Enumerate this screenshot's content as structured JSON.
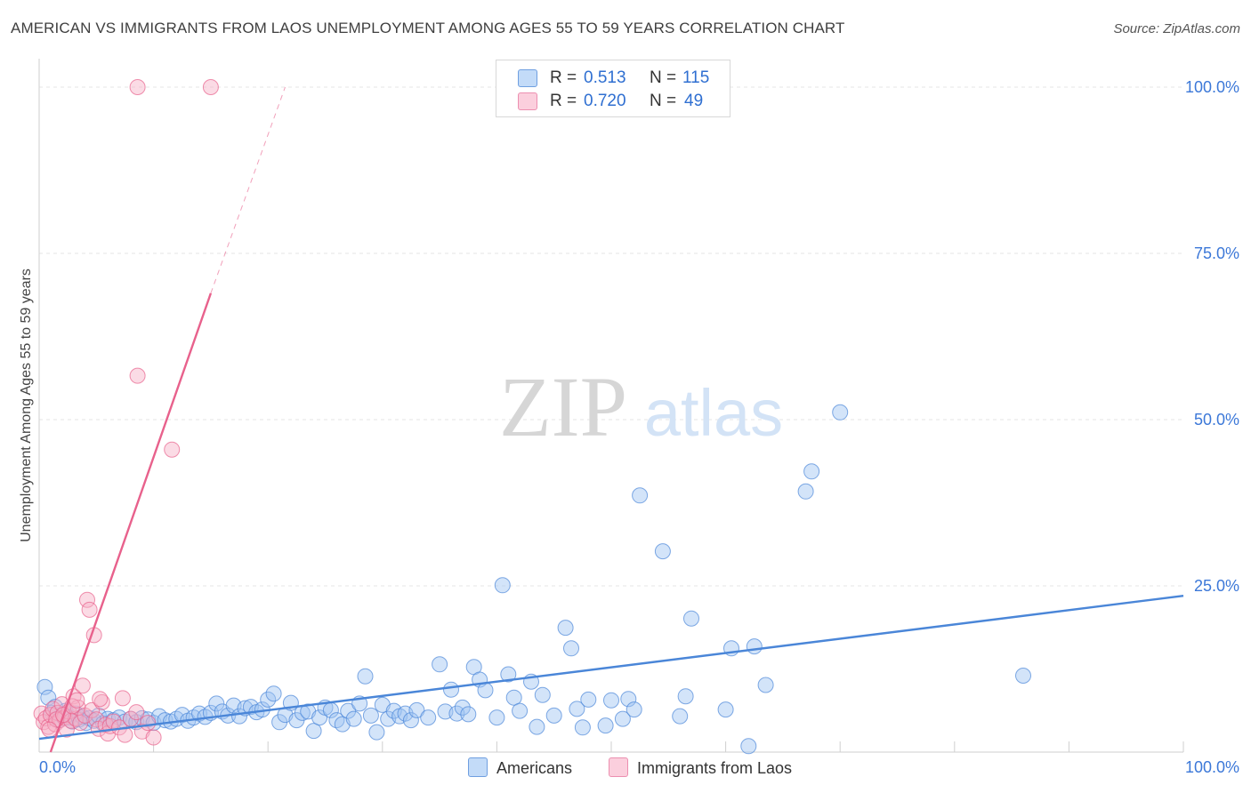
{
  "header": {
    "title": "AMERICAN VS IMMIGRANTS FROM LAOS UNEMPLOYMENT AMONG AGES 55 TO 59 YEARS CORRELATION CHART",
    "source": "Source: ZipAtlas.com"
  },
  "legend": {
    "r_label": "R =",
    "n_label": "N =",
    "americans": {
      "r": "0.513",
      "n": "115",
      "color": "#9dc3f2"
    },
    "laos": {
      "r": "0.720",
      "n": "49",
      "color": "#f7afc6"
    }
  },
  "bottom_legend": {
    "americans": "Americans",
    "laos": "Immigrants from Laos"
  },
  "watermark": {
    "zip": "ZIP",
    "atlas": "atlas"
  },
  "chart_data": {
    "type": "scatter",
    "title": "AMERICAN VS IMMIGRANTS FROM LAOS UNEMPLOYMENT AMONG AGES 55 TO 59 YEARS CORRELATION CHART",
    "xlabel": "",
    "ylabel": "Unemployment Among Ages 55 to 59 years",
    "xlim": [
      0,
      100
    ],
    "ylim": [
      0,
      100
    ],
    "x_tick_labels": [
      "0.0%",
      "100.0%"
    ],
    "y_ticks": [
      25,
      50,
      75,
      100
    ],
    "y_tick_labels": [
      "25.0%",
      "50.0%",
      "75.0%",
      "100.0%"
    ],
    "grid": true,
    "series": [
      {
        "name": "Americans",
        "color": "#4a86d8",
        "fill": "#9dc3f2",
        "trend": {
          "x0": 0,
          "y0": 2.0,
          "x1": 100,
          "y1": 23.5,
          "style": "solid"
        },
        "points": [
          [
            0.5,
            9.8
          ],
          [
            0.8,
            8.2
          ],
          [
            1.1,
            5.9
          ],
          [
            1.4,
            6.8
          ],
          [
            1.7,
            4.8
          ],
          [
            2.0,
            5.5
          ],
          [
            2.3,
            6.2
          ],
          [
            2.6,
            5.2
          ],
          [
            2.9,
            4.6
          ],
          [
            3.2,
            5.8
          ],
          [
            3.5,
            4.9
          ],
          [
            3.8,
            5.3
          ],
          [
            4.1,
            4.4
          ],
          [
            4.4,
            5.1
          ],
          [
            4.8,
            4.7
          ],
          [
            5.2,
            5.5
          ],
          [
            5.6,
            4.3
          ],
          [
            6.0,
            5.0
          ],
          [
            6.5,
            4.8
          ],
          [
            7.0,
            5.2
          ],
          [
            7.5,
            4.6
          ],
          [
            8.0,
            5.0
          ],
          [
            8.5,
            4.5
          ],
          [
            9.0,
            5.1
          ],
          [
            9.5,
            4.9
          ],
          [
            10.0,
            4.4
          ],
          [
            10.5,
            5.4
          ],
          [
            11.0,
            4.8
          ],
          [
            11.5,
            4.6
          ],
          [
            12.0,
            5.0
          ],
          [
            12.5,
            5.6
          ],
          [
            13.0,
            4.7
          ],
          [
            13.5,
            5.2
          ],
          [
            14.0,
            5.8
          ],
          [
            14.5,
            5.3
          ],
          [
            15.0,
            5.9
          ],
          [
            15.5,
            7.3
          ],
          [
            16.0,
            6.1
          ],
          [
            16.5,
            5.5
          ],
          [
            17.0,
            7.0
          ],
          [
            17.5,
            5.4
          ],
          [
            18.0,
            6.6
          ],
          [
            18.5,
            6.8
          ],
          [
            19.0,
            6.0
          ],
          [
            19.5,
            6.4
          ],
          [
            20.0,
            7.9
          ],
          [
            20.5,
            8.8
          ],
          [
            21.0,
            4.5
          ],
          [
            21.5,
            5.6
          ],
          [
            22.0,
            7.4
          ],
          [
            22.5,
            4.8
          ],
          [
            23.0,
            5.9
          ],
          [
            23.5,
            6.1
          ],
          [
            24.0,
            3.2
          ],
          [
            24.5,
            5.2
          ],
          [
            25.0,
            6.7
          ],
          [
            25.5,
            6.3
          ],
          [
            26.0,
            4.8
          ],
          [
            26.5,
            4.2
          ],
          [
            27.0,
            6.2
          ],
          [
            27.5,
            5.0
          ],
          [
            28.0,
            7.3
          ],
          [
            28.5,
            11.4
          ],
          [
            29.0,
            5.5
          ],
          [
            29.5,
            3.0
          ],
          [
            30.0,
            7.1
          ],
          [
            30.5,
            5.0
          ],
          [
            31.0,
            6.2
          ],
          [
            31.5,
            5.4
          ],
          [
            32.0,
            5.8
          ],
          [
            32.5,
            4.8
          ],
          [
            33.0,
            6.3
          ],
          [
            34.0,
            5.2
          ],
          [
            35.0,
            13.2
          ],
          [
            35.5,
            6.1
          ],
          [
            36.0,
            9.4
          ],
          [
            36.5,
            5.8
          ],
          [
            37.0,
            6.7
          ],
          [
            37.5,
            5.7
          ],
          [
            38.0,
            12.8
          ],
          [
            38.5,
            10.9
          ],
          [
            39.0,
            9.3
          ],
          [
            40.0,
            5.2
          ],
          [
            40.5,
            25.1
          ],
          [
            41.0,
            11.7
          ],
          [
            41.5,
            8.2
          ],
          [
            42.0,
            6.2
          ],
          [
            43.0,
            10.6
          ],
          [
            43.5,
            3.8
          ],
          [
            44.0,
            8.6
          ],
          [
            45.0,
            5.5
          ],
          [
            46.0,
            18.7
          ],
          [
            46.5,
            15.6
          ],
          [
            47.0,
            6.5
          ],
          [
            47.5,
            3.7
          ],
          [
            48.0,
            7.9
          ],
          [
            49.5,
            4.0
          ],
          [
            50.0,
            7.8
          ],
          [
            51.0,
            5.0
          ],
          [
            51.5,
            8.0
          ],
          [
            52.0,
            6.4
          ],
          [
            52.5,
            38.6
          ],
          [
            54.5,
            30.2
          ],
          [
            56.0,
            5.4
          ],
          [
            56.5,
            8.4
          ],
          [
            57.0,
            20.1
          ],
          [
            60.0,
            6.4
          ],
          [
            60.5,
            15.6
          ],
          [
            62.0,
            0.9
          ],
          [
            62.5,
            15.9
          ],
          [
            63.5,
            10.1
          ],
          [
            67.0,
            39.2
          ],
          [
            67.5,
            42.2
          ],
          [
            70.0,
            51.1
          ],
          [
            86.0,
            11.5
          ]
        ]
      },
      {
        "name": "Immigrants from Laos",
        "color": "#e8618c",
        "fill": "#f7afc6",
        "trend": {
          "x0": 1.0,
          "y0": 0.0,
          "x1": 15.0,
          "y1": 69.0,
          "style": "solid"
        },
        "trend_extension": {
          "x0": 15.0,
          "y0": 69.0,
          "x1": 21.5,
          "y1": 100.0,
          "style": "dashed"
        },
        "points": [
          [
            0.2,
            5.8
          ],
          [
            0.4,
            4.5
          ],
          [
            0.6,
            5.1
          ],
          [
            0.8,
            3.8
          ],
          [
            1.0,
            5.6
          ],
          [
            1.2,
            6.5
          ],
          [
            1.4,
            4.2
          ],
          [
            1.6,
            5.9
          ],
          [
            1.8,
            4.8
          ],
          [
            2.0,
            7.2
          ],
          [
            2.2,
            5.2
          ],
          [
            2.4,
            3.4
          ],
          [
            2.6,
            6.1
          ],
          [
            2.8,
            4.7
          ],
          [
            3.0,
            8.4
          ],
          [
            3.2,
            5.0
          ],
          [
            3.4,
            6.7
          ],
          [
            3.6,
            4.4
          ],
          [
            3.8,
            10.0
          ],
          [
            4.0,
            5.5
          ],
          [
            4.2,
            22.9
          ],
          [
            4.4,
            21.4
          ],
          [
            4.6,
            6.3
          ],
          [
            4.8,
            17.6
          ],
          [
            5.0,
            4.9
          ],
          [
            5.2,
            3.5
          ],
          [
            5.5,
            7.5
          ],
          [
            5.8,
            4.1
          ],
          [
            6.0,
            2.8
          ],
          [
            6.2,
            3.9
          ],
          [
            6.5,
            4.6
          ],
          [
            7.0,
            3.7
          ],
          [
            7.5,
            2.6
          ],
          [
            8.0,
            5.0
          ],
          [
            8.5,
            6.0
          ],
          [
            9.0,
            3.1
          ],
          [
            9.5,
            4.4
          ],
          [
            10.0,
            2.2
          ],
          [
            8.6,
            56.6
          ],
          [
            11.6,
            45.5
          ],
          [
            8.6,
            100.0
          ],
          [
            15.0,
            100.0
          ],
          [
            1.5,
            4.9
          ],
          [
            2.1,
            5.6
          ],
          [
            2.9,
            6.9
          ],
          [
            3.3,
            7.8
          ],
          [
            5.3,
            8.0
          ],
          [
            7.3,
            8.1
          ],
          [
            0.9,
            3.4
          ]
        ]
      }
    ]
  }
}
